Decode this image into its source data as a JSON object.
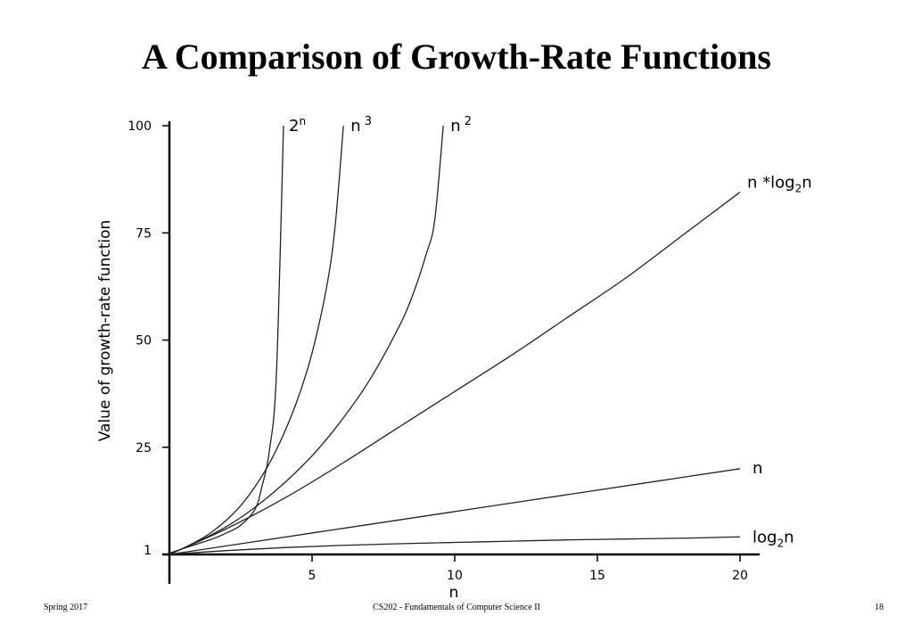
{
  "slide": {
    "title": "A Comparison of Growth-Rate Functions",
    "footer_left": "Spring 2017",
    "footer_center": "CS202 - Fundamentals of Computer Science II",
    "footer_right": "18"
  },
  "chart_data": {
    "type": "line",
    "title": "",
    "xlabel": "n",
    "ylabel": "Value of growth-rate function",
    "xlim": [
      0,
      20
    ],
    "ylim": [
      0,
      100
    ],
    "x_ticks": [
      5,
      10,
      15,
      20
    ],
    "y_ticks": [
      1,
      25,
      50,
      75,
      100
    ],
    "grid": false,
    "legend": "labels at line ends",
    "line_color": "#222222",
    "series": [
      {
        "name": "2^n",
        "formula": "2^n",
        "x": [
          0,
          0.5,
          1,
          1.5,
          2,
          2.5,
          3,
          3.25,
          3.5,
          3.75,
          4.0
        ],
        "y": [
          0.3,
          1.4,
          2.5,
          3.6,
          5.0,
          6.8,
          10.5,
          16,
          24,
          42,
          100
        ]
      },
      {
        "name": "n^3",
        "formula": "n^3",
        "x": [
          0,
          0.5,
          1,
          1.5,
          2,
          2.5,
          3,
          3.5,
          4,
          4.5,
          5,
          5.5,
          5.8,
          6.1
        ],
        "y": [
          0,
          1.5,
          3.2,
          5.3,
          8,
          11.4,
          15.8,
          21.2,
          28,
          36.3,
          47,
          62,
          76,
          100
        ]
      },
      {
        "name": "n^2",
        "formula": "n^2",
        "x": [
          0,
          1,
          2,
          3,
          4,
          5,
          6,
          7,
          8,
          8.5,
          9,
          9.3,
          9.6
        ],
        "y": [
          0,
          3,
          6.5,
          11,
          16.5,
          23,
          31,
          40.5,
          52.5,
          60,
          70,
          78,
          100
        ]
      },
      {
        "name": "n *log2n",
        "formula": "n*log2(n)",
        "x": [
          0,
          2,
          4,
          6,
          8,
          10,
          12,
          14,
          16,
          18,
          20
        ],
        "y": [
          0,
          6,
          13,
          21,
          29.5,
          38,
          46.5,
          55.5,
          64.5,
          74.5,
          84.5
        ]
      },
      {
        "name": "n",
        "formula": "n",
        "x": [
          0,
          5,
          10,
          15,
          20
        ],
        "y": [
          0,
          5,
          10,
          15,
          20
        ]
      },
      {
        "name": "log2n",
        "formula": "log2(n)",
        "x": [
          0,
          2,
          4,
          6,
          8,
          10,
          12,
          14,
          16,
          18,
          20
        ],
        "y": [
          0,
          0.9,
          1.6,
          2.1,
          2.5,
          2.8,
          3.1,
          3.4,
          3.6,
          3.8,
          4.1
        ]
      }
    ]
  }
}
